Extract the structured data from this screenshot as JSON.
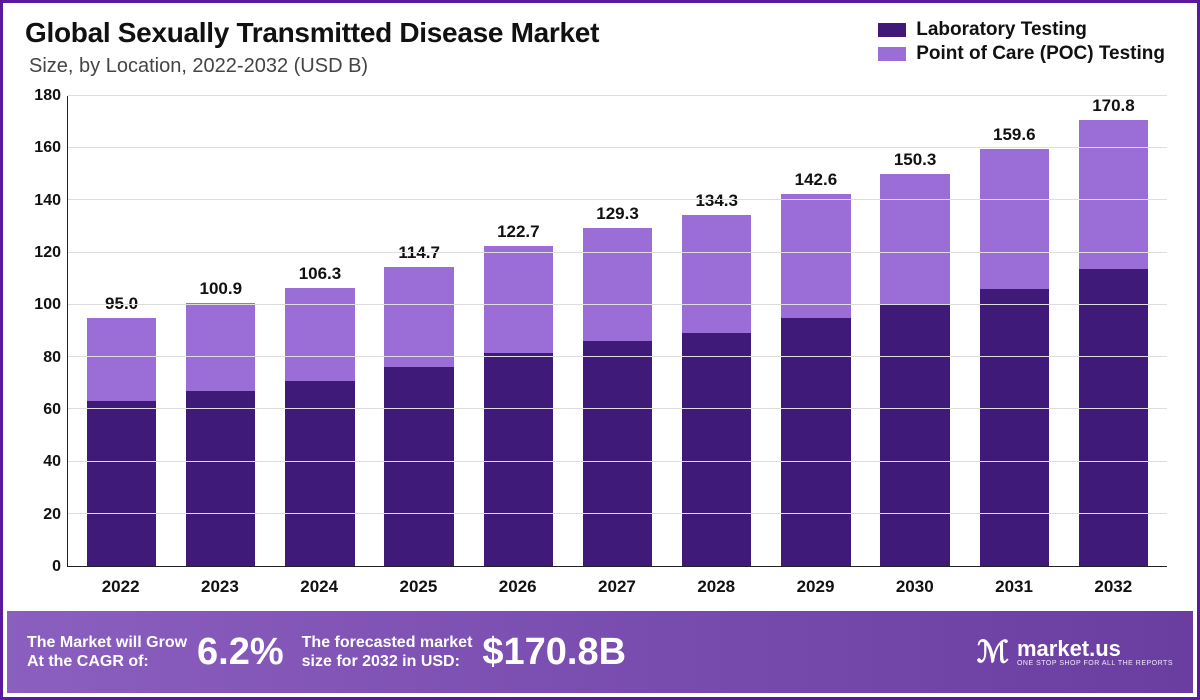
{
  "header": {
    "title": "Global Sexually Transmitted Disease Market",
    "subtitle": "Size, by Location, 2022-2032 (USD B)"
  },
  "legend": {
    "items": [
      {
        "label": "Laboratory Testing",
        "color": "#3f1a78"
      },
      {
        "label": "Point of Care (POC) Testing",
        "color": "#9b6dd7"
      }
    ]
  },
  "chart": {
    "type": "stacked-bar",
    "ylim": [
      0,
      180
    ],
    "ytick_step": 20,
    "yticks": [
      0,
      20,
      40,
      60,
      80,
      100,
      120,
      140,
      160,
      180
    ],
    "grid_color": "#dddddd",
    "axis_color": "#222222",
    "background_color": "#ffffff",
    "bar_width_pct": 70,
    "label_fontsize": 17,
    "ylabel_fontsize": 16,
    "categories": [
      "2022",
      "2023",
      "2024",
      "2025",
      "2026",
      "2027",
      "2028",
      "2029",
      "2030",
      "2031",
      "2032"
    ],
    "series": [
      {
        "name": "Laboratory Testing",
        "color": "#3f1a78",
        "values": [
          63.3,
          67.2,
          70.8,
          76.4,
          81.7,
          86.1,
          89.4,
          94.9,
          100.0,
          106.2,
          113.6
        ]
      },
      {
        "name": "Point of Care (POC) Testing",
        "color": "#9b6dd7",
        "values": [
          31.7,
          33.7,
          35.5,
          38.3,
          41.0,
          43.2,
          44.9,
          47.7,
          50.3,
          53.4,
          57.2
        ]
      }
    ],
    "totals": [
      "95.0",
      "100.9",
      "106.3",
      "114.7",
      "122.7",
      "129.3",
      "134.3",
      "142.6",
      "150.3",
      "159.6",
      "170.8"
    ]
  },
  "footer": {
    "cagr_text": "The Market will Grow\nAt the CAGR of:",
    "cagr_value": "6.2%",
    "forecast_text": "The forecasted market\nsize for 2032 in USD:",
    "forecast_value": "$170.8B",
    "brand_name": "market.us",
    "brand_tagline": "ONE STOP SHOP FOR ALL THE REPORTS",
    "background_gradient": [
      "#8b5fbf",
      "#6a3ea0"
    ],
    "text_color": "#ffffff"
  }
}
